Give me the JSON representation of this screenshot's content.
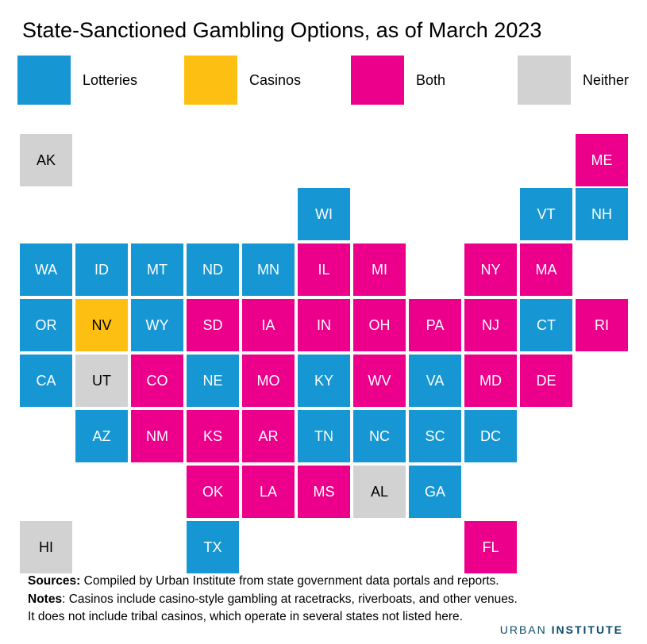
{
  "title": "State-Sanctioned Gambling Options, as of March 2023",
  "legend": [
    {
      "key": "l",
      "label": "Lotteries",
      "color": "#1696d2"
    },
    {
      "key": "c",
      "label": "Casinos",
      "color": "#fdbf11"
    },
    {
      "key": "b",
      "label": "Both",
      "color": "#ec008b"
    },
    {
      "key": "n",
      "label": "Neither",
      "color": "#d2d2d2"
    }
  ],
  "states": [
    {
      "abbr": "AK",
      "cat": "n"
    },
    {
      "abbr": "ME",
      "cat": "b"
    },
    {
      "abbr": "WI",
      "cat": "l"
    },
    {
      "abbr": "VT",
      "cat": "l"
    },
    {
      "abbr": "NH",
      "cat": "l"
    },
    {
      "abbr": "WA",
      "cat": "l"
    },
    {
      "abbr": "ID",
      "cat": "l"
    },
    {
      "abbr": "MT",
      "cat": "l"
    },
    {
      "abbr": "ND",
      "cat": "l"
    },
    {
      "abbr": "MN",
      "cat": "l"
    },
    {
      "abbr": "IL",
      "cat": "b"
    },
    {
      "abbr": "MI",
      "cat": "b"
    },
    {
      "abbr": "NY",
      "cat": "b"
    },
    {
      "abbr": "MA",
      "cat": "b"
    },
    {
      "abbr": "OR",
      "cat": "l"
    },
    {
      "abbr": "NV",
      "cat": "c"
    },
    {
      "abbr": "WY",
      "cat": "l"
    },
    {
      "abbr": "SD",
      "cat": "b"
    },
    {
      "abbr": "IA",
      "cat": "b"
    },
    {
      "abbr": "IN",
      "cat": "b"
    },
    {
      "abbr": "OH",
      "cat": "b"
    },
    {
      "abbr": "PA",
      "cat": "b"
    },
    {
      "abbr": "NJ",
      "cat": "b"
    },
    {
      "abbr": "CT",
      "cat": "l"
    },
    {
      "abbr": "RI",
      "cat": "b"
    },
    {
      "abbr": "CA",
      "cat": "l"
    },
    {
      "abbr": "UT",
      "cat": "n"
    },
    {
      "abbr": "CO",
      "cat": "b"
    },
    {
      "abbr": "NE",
      "cat": "l"
    },
    {
      "abbr": "MO",
      "cat": "b"
    },
    {
      "abbr": "KY",
      "cat": "l"
    },
    {
      "abbr": "WV",
      "cat": "b"
    },
    {
      "abbr": "VA",
      "cat": "l"
    },
    {
      "abbr": "MD",
      "cat": "b"
    },
    {
      "abbr": "DE",
      "cat": "b"
    },
    {
      "abbr": "AZ",
      "cat": "l"
    },
    {
      "abbr": "NM",
      "cat": "b"
    },
    {
      "abbr": "KS",
      "cat": "b"
    },
    {
      "abbr": "AR",
      "cat": "b"
    },
    {
      "abbr": "TN",
      "cat": "l"
    },
    {
      "abbr": "NC",
      "cat": "l"
    },
    {
      "abbr": "SC",
      "cat": "l"
    },
    {
      "abbr": "DC",
      "cat": "l"
    },
    {
      "abbr": "OK",
      "cat": "b"
    },
    {
      "abbr": "LA",
      "cat": "b"
    },
    {
      "abbr": "MS",
      "cat": "b"
    },
    {
      "abbr": "AL",
      "cat": "n"
    },
    {
      "abbr": "GA",
      "cat": "l"
    },
    {
      "abbr": "HI",
      "cat": "n"
    },
    {
      "abbr": "TX",
      "cat": "l"
    },
    {
      "abbr": "FL",
      "cat": "b"
    }
  ],
  "footer": {
    "sources_label": "Sources:",
    "sources_text": " Compiled by Urban Institute from state government data portals and reports.",
    "notes_label": "Notes",
    "notes_text": ": Casinos include casino-style gambling at racetracks, riverboats, and other venues.",
    "notes_line2": "It does not include tribal casinos, which operate in several states not listed here."
  },
  "brand": {
    "part1": "URBAN",
    "part2": "INSTITUTE"
  }
}
